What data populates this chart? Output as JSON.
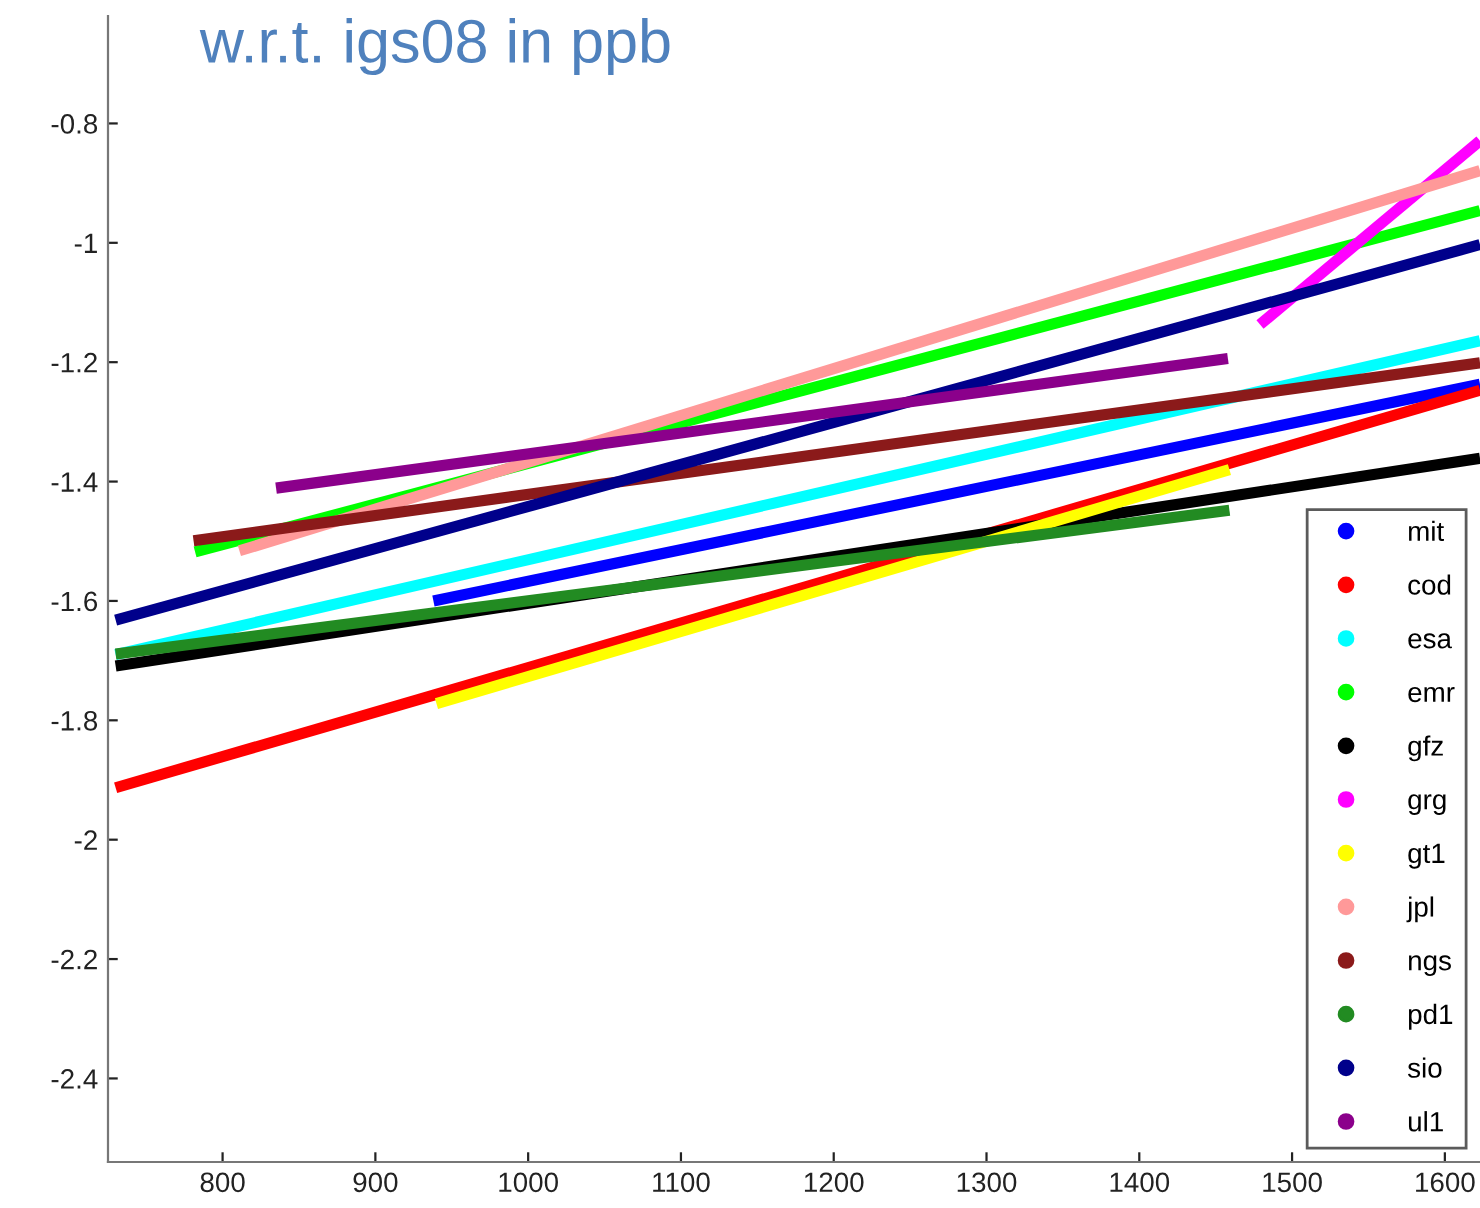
{
  "chart_data": {
    "type": "line",
    "title": "w.r.t. igs08 in ppb",
    "xlim": [
      725,
      1623
    ],
    "ylim": [
      -2.54,
      -0.62
    ],
    "xticks": [
      800,
      900,
      1000,
      1100,
      1200,
      1300,
      1400,
      1500,
      1600
    ],
    "yticks": [
      -2.4,
      -2.2,
      -2,
      -1.8,
      -1.6,
      -1.4,
      -1.2,
      -1,
      -0.8
    ],
    "grid": false,
    "legend": "bottom right",
    "series": [
      {
        "name": "mit",
        "color": "#0000ff",
        "x": [
          938,
          1623
        ],
        "values": [
          -1.6,
          -1.237
        ]
      },
      {
        "name": "cod",
        "color": "#ff0000",
        "x": [
          730,
          1623
        ],
        "values": [
          -1.913,
          -1.247
        ]
      },
      {
        "name": "esa",
        "color": "#00ffff",
        "x": [
          730,
          1623
        ],
        "values": [
          -1.69,
          -1.164
        ]
      },
      {
        "name": "emr",
        "color": "#00ff00",
        "x": [
          782,
          1623
        ],
        "values": [
          -1.518,
          -0.946
        ]
      },
      {
        "name": "gfz",
        "color": "#000000",
        "x": [
          730,
          1623
        ],
        "values": [
          -1.709,
          -1.361
        ]
      },
      {
        "name": "grg",
        "color": "#ff00ff",
        "x": [
          1479,
          1623
        ],
        "values": [
          -1.137,
          -0.829
        ]
      },
      {
        "name": "gt1",
        "color": "#ffff00",
        "x": [
          940,
          1459
        ],
        "values": [
          -1.772,
          -1.38
        ]
      },
      {
        "name": "jpl",
        "color": "#ff9999",
        "x": [
          811,
          1623
        ],
        "values": [
          -1.516,
          -0.879
        ]
      },
      {
        "name": "ngs",
        "color": "#8b1a1a",
        "x": [
          781,
          1623
        ],
        "values": [
          -1.499,
          -1.201
        ]
      },
      {
        "name": "pd1",
        "color": "#228b22",
        "x": [
          730,
          1459
        ],
        "values": [
          -1.689,
          -1.448
        ]
      },
      {
        "name": "sio",
        "color": "#00008b",
        "x": [
          730,
          1623
        ],
        "values": [
          -1.632,
          -1.003
        ]
      },
      {
        "name": "ul1",
        "color": "#8b008b",
        "x": [
          835,
          1458
        ],
        "values": [
          -1.411,
          -1.194
        ]
      }
    ]
  }
}
